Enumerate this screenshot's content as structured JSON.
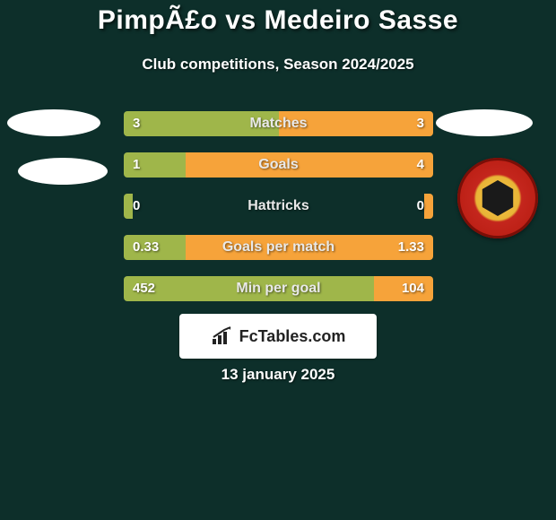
{
  "background_color": "#0d2f2a",
  "title": {
    "text": "PimpÃ£o vs Medeiro Sasse",
    "color": "#ffffff",
    "fontsize": 30
  },
  "subtitle": {
    "text": "Club competitions, Season 2024/2025",
    "color": "#ffffff",
    "fontsize": 17
  },
  "left_color": "#9fb64a",
  "right_color": "#f6a33a",
  "label_color": "#e9e9e9",
  "label_fontsize": 16,
  "value_fontsize": 15,
  "rows": [
    {
      "label": "Matches",
      "left": "3",
      "right": "3",
      "left_pct": 50.0,
      "right_pct": 50.0
    },
    {
      "label": "Goals",
      "left": "1",
      "right": "4",
      "left_pct": 20.0,
      "right_pct": 80.0
    },
    {
      "label": "Hattricks",
      "left": "0",
      "right": "0",
      "left_pct": 3.0,
      "right_pct": 3.0
    },
    {
      "label": "Goals per match",
      "left": "0.33",
      "right": "1.33",
      "left_pct": 20.0,
      "right_pct": 80.0
    },
    {
      "label": "Min per goal",
      "left": "452",
      "right": "104",
      "left_pct": 81.0,
      "right_pct": 19.0
    }
  ],
  "logo": {
    "text": "FcTables.com",
    "fontsize": 18,
    "icon_color": "#222222"
  },
  "date": {
    "text": "13 january 2025",
    "color": "#ffffff",
    "fontsize": 17
  }
}
